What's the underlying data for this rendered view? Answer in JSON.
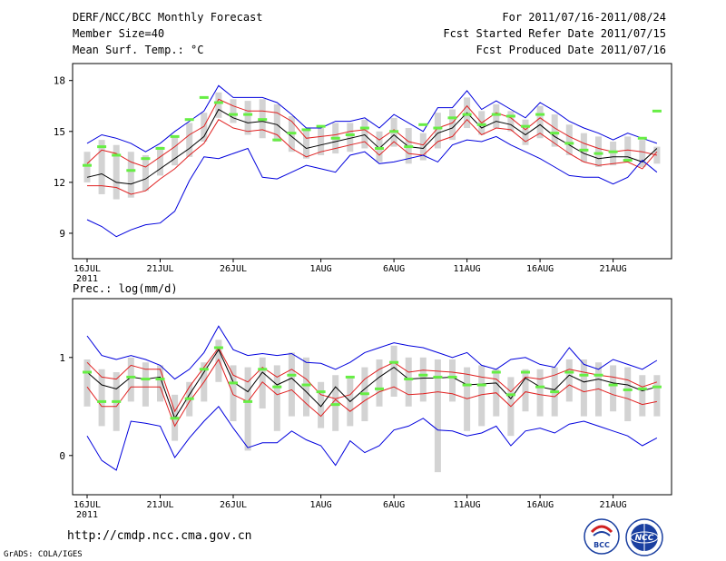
{
  "header": {
    "title": "DERF/NCC/BCC Monthly Forecast",
    "member": "Member Size=40",
    "variable": "Mean Surf. Temp.: °C",
    "period": "For 2011/07/16-2011/08/24",
    "refer": "Fcst Started Refer Date 2011/07/15",
    "produced": "Fcst Produced Date 2011/07/16"
  },
  "footer": {
    "url": "http://cmdp.ncc.cma.gov.cn",
    "grads": "GrADS: COLA/IGES",
    "logo1": "BCC",
    "logo2": "NCC"
  },
  "colors": {
    "bar": "#d3d3d3",
    "mean": "#000000",
    "spread": "#e02020",
    "envelope": "#0000dd",
    "marker": "#66ee44"
  },
  "chart_data": [
    {
      "type": "line",
      "title": "Mean Surf. Temp.: °C",
      "x_tick_labels": [
        "16JUL",
        "21JUL",
        "26JUL",
        "1AUG",
        "6AUG",
        "11AUG",
        "16AUG",
        "21AUG"
      ],
      "x_year_label": "2011",
      "ylim": [
        7.5,
        19
      ],
      "y_ticks": [
        9,
        12,
        15,
        18
      ],
      "days": 40,
      "series": [
        {
          "name": "max",
          "values": [
            14.3,
            14.8,
            14.6,
            14.3,
            13.8,
            14.3,
            15.0,
            15.6,
            16.2,
            17.7,
            17.0,
            17.0,
            17.0,
            16.7,
            16.0,
            15.2,
            15.2,
            15.6,
            15.6,
            15.8,
            15.2,
            16.0,
            15.5,
            15.0,
            16.4,
            16.4,
            17.4,
            16.3,
            16.8,
            16.3,
            15.8,
            16.7,
            16.2,
            15.6,
            15.2,
            14.9,
            14.5,
            14.9,
            14.6,
            14.3
          ]
        },
        {
          "name": "upper",
          "values": [
            13.1,
            13.9,
            13.7,
            13.2,
            12.9,
            13.5,
            14.1,
            14.8,
            15.3,
            16.9,
            16.5,
            16.2,
            16.2,
            16.1,
            15.6,
            14.6,
            14.7,
            14.8,
            15.0,
            15.1,
            14.5,
            15.1,
            14.4,
            14.2,
            15.2,
            15.5,
            16.5,
            15.5,
            16.1,
            15.8,
            15.1,
            15.8,
            15.2,
            14.7,
            14.3,
            14.0,
            13.8,
            13.9,
            13.8,
            13.6
          ]
        },
        {
          "name": "mean",
          "values": [
            12.3,
            12.5,
            12.0,
            11.9,
            12.2,
            12.8,
            13.4,
            14.0,
            14.7,
            16.3,
            15.8,
            15.5,
            15.6,
            15.4,
            14.7,
            14.0,
            14.2,
            14.4,
            14.6,
            14.8,
            14.0,
            14.8,
            14.1,
            14.0,
            14.9,
            15.2,
            16.1,
            15.2,
            15.6,
            15.4,
            14.8,
            15.4,
            14.7,
            14.2,
            13.7,
            13.4,
            13.5,
            13.5,
            13.2,
            14.0
          ]
        },
        {
          "name": "lower",
          "values": [
            11.8,
            11.8,
            11.7,
            11.3,
            11.5,
            12.2,
            12.8,
            13.6,
            14.3,
            15.7,
            15.2,
            15.0,
            15.1,
            14.8,
            14.0,
            13.5,
            13.8,
            14.0,
            14.2,
            14.4,
            13.6,
            14.4,
            13.7,
            13.6,
            14.4,
            14.7,
            15.7,
            14.8,
            15.2,
            15.1,
            14.4,
            14.9,
            14.3,
            13.7,
            13.2,
            13.0,
            13.1,
            13.2,
            12.8,
            13.8
          ]
        },
        {
          "name": "min",
          "values": [
            9.8,
            9.4,
            8.8,
            9.2,
            9.5,
            9.6,
            10.3,
            12.1,
            13.5,
            13.4,
            13.7,
            14.0,
            12.3,
            12.2,
            12.6,
            13.0,
            12.8,
            12.6,
            13.6,
            13.8,
            13.1,
            13.2,
            13.4,
            13.6,
            13.2,
            14.2,
            14.5,
            14.4,
            14.7,
            14.2,
            13.8,
            13.4,
            12.9,
            12.4,
            12.3,
            12.3,
            11.9,
            12.3,
            13.3,
            12.6
          ]
        },
        {
          "name": "marker",
          "values": [
            13.0,
            14.1,
            13.6,
            12.7,
            13.4,
            14.0,
            14.7,
            15.7,
            17.0,
            16.7,
            16.0,
            16.0,
            15.7,
            14.5,
            14.9,
            15.1,
            15.3,
            14.6,
            14.8,
            15.2,
            14.0,
            15.0,
            14.1,
            15.4,
            15.2,
            15.8,
            16.0,
            15.4,
            16.0,
            15.9,
            15.3,
            16.0,
            14.9,
            14.3,
            13.9,
            13.7,
            13.8,
            13.3,
            14.6,
            16.2
          ]
        }
      ],
      "boxes": {
        "top": [
          13.8,
          14.5,
          14.2,
          13.8,
          13.6,
          14.1,
          14.7,
          15.5,
          16.1,
          17.3,
          16.9,
          16.8,
          16.9,
          16.6,
          15.9,
          15.1,
          15.2,
          15.5,
          15.5,
          15.7,
          15.0,
          15.8,
          15.2,
          14.9,
          16.1,
          16.3,
          17.0,
          16.2,
          16.6,
          16.2,
          15.7,
          16.5,
          16.0,
          15.4,
          14.9,
          14.7,
          14.4,
          14.7,
          14.5,
          14.1
        ],
        "bottom": [
          12.0,
          11.3,
          11.0,
          11.1,
          11.5,
          12.4,
          13.0,
          13.5,
          14.4,
          15.8,
          15.5,
          14.8,
          14.6,
          14.4,
          13.8,
          13.4,
          13.6,
          13.7,
          13.8,
          14.0,
          13.2,
          14.1,
          13.1,
          13.3,
          14.0,
          14.5,
          15.2,
          14.8,
          15.2,
          15.0,
          14.2,
          14.6,
          14.1,
          13.6,
          13.2,
          12.9,
          13.0,
          13.2,
          12.9,
          13.1
        ]
      }
    },
    {
      "type": "line",
      "title": "Prec.: log(mm/d)",
      "x_tick_labels": [
        "16JUL",
        "21JUL",
        "26JUL",
        "1AUG",
        "6AUG",
        "11AUG",
        "16AUG",
        "21AUG"
      ],
      "x_year_label": "2011",
      "ylim": [
        -0.4,
        1.6
      ],
      "y_ticks": [
        0,
        1
      ],
      "days": 40,
      "series": [
        {
          "name": "max",
          "values": [
            1.22,
            1.02,
            0.98,
            1.02,
            0.98,
            0.92,
            0.78,
            0.88,
            1.05,
            1.32,
            1.08,
            1.02,
            1.04,
            1.02,
            1.04,
            0.95,
            0.94,
            0.88,
            0.95,
            1.05,
            1.1,
            1.15,
            1.12,
            1.1,
            1.05,
            1.0,
            1.05,
            0.92,
            0.88,
            0.98,
            1.0,
            0.93,
            0.9,
            1.1,
            0.93,
            0.88,
            0.98,
            0.93,
            0.88,
            0.97
          ]
        },
        {
          "name": "upper",
          "values": [
            0.95,
            0.8,
            0.78,
            0.92,
            0.88,
            0.88,
            0.45,
            0.7,
            0.9,
            1.1,
            0.82,
            0.75,
            0.9,
            0.8,
            0.88,
            0.78,
            0.62,
            0.58,
            0.62,
            0.78,
            0.88,
            0.95,
            0.85,
            0.87,
            0.86,
            0.85,
            0.83,
            0.8,
            0.78,
            0.65,
            0.8,
            0.78,
            0.82,
            0.88,
            0.85,
            0.82,
            0.8,
            0.77,
            0.7,
            0.75
          ]
        },
        {
          "name": "mean",
          "values": [
            0.85,
            0.72,
            0.68,
            0.8,
            0.78,
            0.8,
            0.38,
            0.62,
            0.85,
            1.08,
            0.75,
            0.65,
            0.85,
            0.72,
            0.79,
            0.65,
            0.5,
            0.7,
            0.55,
            0.68,
            0.8,
            0.9,
            0.78,
            0.79,
            0.79,
            0.8,
            0.72,
            0.73,
            0.74,
            0.58,
            0.79,
            0.7,
            0.67,
            0.82,
            0.75,
            0.78,
            0.74,
            0.72,
            0.66,
            0.7
          ]
        },
        {
          "name": "lower",
          "values": [
            0.7,
            0.5,
            0.5,
            0.7,
            0.7,
            0.7,
            0.3,
            0.55,
            0.75,
            0.98,
            0.62,
            0.55,
            0.75,
            0.62,
            0.67,
            0.53,
            0.4,
            0.57,
            0.45,
            0.56,
            0.65,
            0.7,
            0.62,
            0.63,
            0.65,
            0.63,
            0.58,
            0.62,
            0.64,
            0.5,
            0.65,
            0.62,
            0.6,
            0.72,
            0.65,
            0.68,
            0.62,
            0.58,
            0.52,
            0.55
          ]
        },
        {
          "name": "min",
          "values": [
            0.2,
            -0.05,
            -0.15,
            0.35,
            0.33,
            0.3,
            -0.02,
            0.18,
            0.35,
            0.5,
            0.28,
            0.08,
            0.13,
            0.13,
            0.25,
            0.16,
            0.1,
            -0.1,
            0.15,
            0.03,
            0.1,
            0.26,
            0.3,
            0.38,
            0.26,
            0.25,
            0.2,
            0.23,
            0.3,
            0.1,
            0.25,
            0.28,
            0.23,
            0.32,
            0.35,
            0.3,
            0.25,
            0.2,
            0.1,
            0.18
          ]
        },
        {
          "name": "marker",
          "values": [
            0.85,
            0.55,
            0.55,
            0.8,
            0.78,
            0.78,
            0.38,
            0.58,
            0.88,
            1.1,
            0.74,
            0.55,
            0.88,
            0.7,
            0.82,
            0.72,
            0.65,
            0.52,
            0.8,
            0.63,
            0.68,
            0.95,
            0.78,
            0.82,
            0.8,
            0.8,
            0.72,
            0.72,
            0.85,
            0.62,
            0.85,
            0.7,
            0.65,
            0.85,
            0.82,
            0.82,
            0.72,
            0.67,
            0.68,
            0.7
          ]
        }
      ],
      "boxes": {
        "top": [
          0.98,
          0.88,
          0.85,
          1.0,
          0.95,
          0.92,
          0.62,
          0.75,
          0.95,
          1.18,
          0.92,
          0.9,
          1.0,
          0.92,
          1.05,
          1.0,
          0.75,
          0.82,
          0.8,
          0.9,
          0.98,
          1.12,
          1.0,
          1.0,
          0.98,
          0.98,
          0.9,
          0.92,
          0.88,
          0.8,
          0.88,
          0.88,
          0.9,
          0.98,
          0.98,
          0.95,
          0.92,
          0.9,
          0.82,
          0.82
        ],
        "bottom": [
          0.5,
          0.3,
          0.25,
          0.55,
          0.5,
          0.55,
          0.15,
          0.4,
          0.55,
          0.75,
          0.35,
          0.05,
          0.48,
          0.25,
          0.4,
          0.4,
          0.28,
          0.25,
          0.3,
          0.35,
          0.5,
          0.6,
          0.5,
          0.55,
          -0.17,
          0.55,
          0.25,
          0.3,
          0.4,
          0.2,
          0.45,
          0.4,
          0.4,
          0.55,
          0.4,
          0.4,
          0.45,
          0.35,
          0.4,
          0.4
        ]
      }
    }
  ]
}
